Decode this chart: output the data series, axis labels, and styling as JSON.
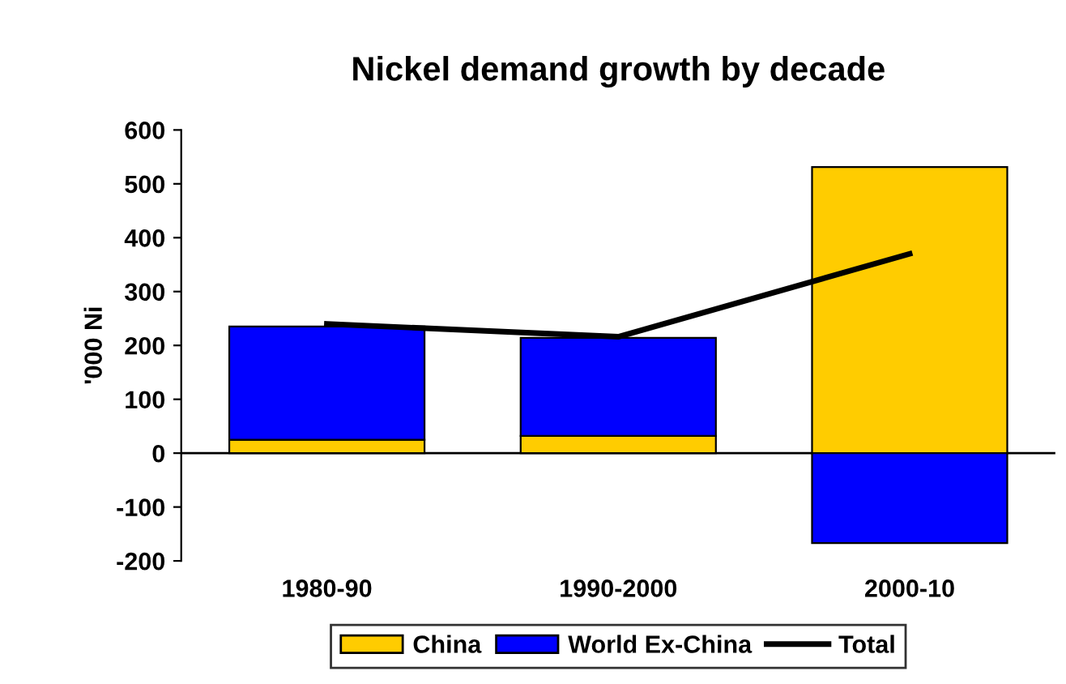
{
  "chart_data": {
    "type": "bar",
    "title": "Nickel demand growth by decade",
    "ylabel": "'000 Ni",
    "categories": [
      "1980-90",
      "1990-2000",
      "2000-10"
    ],
    "stacked": true,
    "series": [
      {
        "name": "China",
        "color": "#ffcc00",
        "values": [
          25,
          32,
          531
        ]
      },
      {
        "name": "World Ex-China",
        "color": "#0000ff",
        "values": [
          210,
          182,
          -167
        ]
      },
      {
        "name": "Total",
        "type": "line",
        "color": "#000000",
        "values": [
          240,
          216,
          370
        ]
      }
    ],
    "ylim": [
      -200,
      600
    ],
    "yticks": [
      -200,
      -100,
      0,
      100,
      200,
      300,
      400,
      500,
      600
    ],
    "grid": false,
    "ref_lines": [
      {
        "axis": "y",
        "value": 0,
        "color": "#000000"
      }
    ],
    "legend": "bottom"
  }
}
